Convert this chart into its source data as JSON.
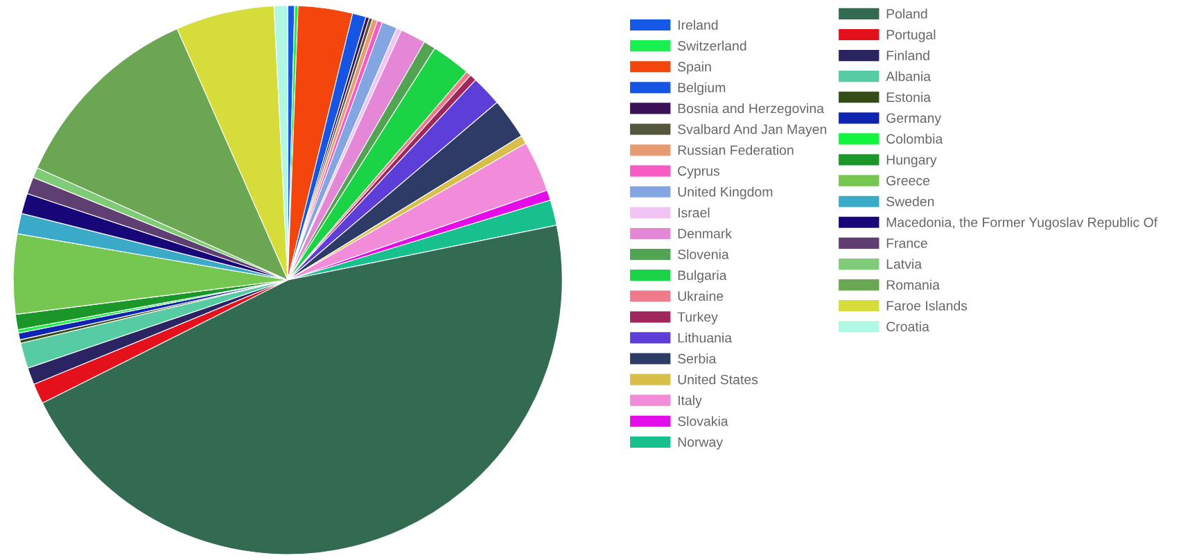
{
  "chart_data": {
    "type": "pie",
    "legend": "right",
    "categories": [
      "Ireland",
      "Switzerland",
      "Spain",
      "Belgium",
      "Bosnia and Herzegovina",
      "Svalbard And Jan Mayen",
      "Russian Federation",
      "Cyprus",
      "United Kingdom",
      "Israel",
      "Denmark",
      "Slovenia",
      "Bulgaria",
      "Ukraine",
      "Turkey",
      "Lithuania",
      "Serbia",
      "United States",
      "Italy",
      "Slovakia",
      "Norway",
      "Poland",
      "Portugal",
      "Finland",
      "Albania",
      "Estonia",
      "Germany",
      "Colombia",
      "Hungary",
      "Greece",
      "Sweden",
      "Macedonia, the Former Yugoslav Republic Of",
      "France",
      "Latvia",
      "Romania",
      "Faroe Islands",
      "Croatia"
    ],
    "values": [
      0.4,
      0.2,
      3.2,
      0.8,
      0.2,
      0.2,
      0.3,
      0.3,
      0.9,
      0.3,
      1.5,
      0.7,
      2.3,
      0.3,
      0.4,
      1.8,
      2.4,
      0.5,
      3.0,
      0.6,
      1.5,
      45.8,
      1.2,
      1.0,
      1.5,
      0.2,
      0.4,
      0.2,
      0.9,
      4.7,
      1.2,
      1.2,
      1.0,
      0.6,
      11.7,
      5.8,
      0.8
    ],
    "colors": [
      "#1559e6",
      "#19f050",
      "#f4450c",
      "#1655e4",
      "#3b1259",
      "#56563f",
      "#e89a72",
      "#f85bc4",
      "#83a5e2",
      "#f2c4f4",
      "#e487d6",
      "#52a452",
      "#1ad446",
      "#ef7b8a",
      "#a0275d",
      "#5d3ed8",
      "#2e3b66",
      "#d8bf4a",
      "#f28bd9",
      "#e40ce8",
      "#17c08c",
      "#336b52",
      "#e4101c",
      "#2a2463",
      "#57cba4",
      "#344d16",
      "#0f24b1",
      "#14f43e",
      "#1b9629",
      "#76c652",
      "#3aaac8",
      "#170677",
      "#5f3f72",
      "#7fcb77",
      "#6ba653",
      "#d6dd3b",
      "#b0f8e4"
    ]
  }
}
